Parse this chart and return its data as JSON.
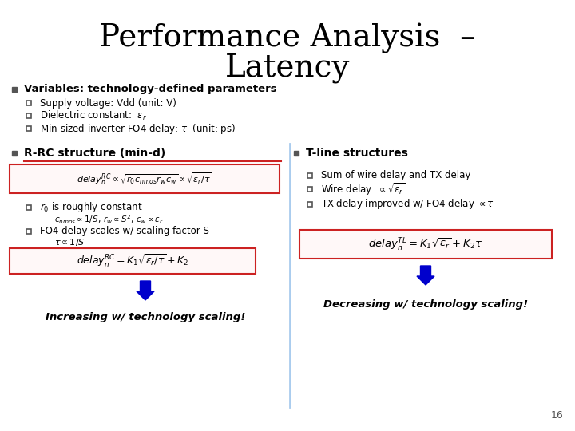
{
  "title_line1": "Performance Analysis  –",
  "title_line2": "Latency",
  "bg_color": "#ffffff",
  "title_color": "#000000",
  "title_fontsize": 28,
  "blue_arrow_color": "#0000cc",
  "divider_color": "#aaccee",
  "page_number": "16",
  "left_col": {
    "header": "R-RC structure (min-d)",
    "formula1": "$delay_n^{RC} \\propto \\sqrt{r_0 c_{nmos} r_w c_w} \\propto \\sqrt{\\epsilon_r / \\tau}$",
    "bullet1": "$r_0$ is roughly constant",
    "sub_bullet1": "$c_{nmos} \\propto 1/S,\\, r_w \\propto S^2,\\, c_w \\propto \\varepsilon_r$",
    "bullet2": "FO4 delay scales w/ scaling factor S",
    "sub_bullet2": "$\\tau \\propto 1/S$",
    "formula2": "$delay_n^{RC} = K_1\\sqrt{\\epsilon_r/\\tau} + K_2$",
    "bottom_text": "Increasing w/ technology scaling!"
  },
  "right_col": {
    "header": "T-line structures",
    "bullet1": "Sum of wire delay and TX delay",
    "bullet2": "Wire delay  $\\propto \\sqrt{\\varepsilon_r}$",
    "bullet3": "TX delay improved w/ FO4 delay $\\propto \\tau$",
    "formula": "$delay_n^{TL} = K_1\\sqrt{\\epsilon_r} + K_2\\tau$",
    "bottom_text": "Decreasing w/ technology scaling!"
  },
  "top_bullets": {
    "main": "Variables: technology-defined parameters",
    "sub1": "Supply voltage: Vdd (unit: V)",
    "sub2": "Dielectric constant:  $\\varepsilon_r$",
    "sub3": "Min-sized inverter FO4 delay: $\\tau$  (unit: ps)"
  }
}
